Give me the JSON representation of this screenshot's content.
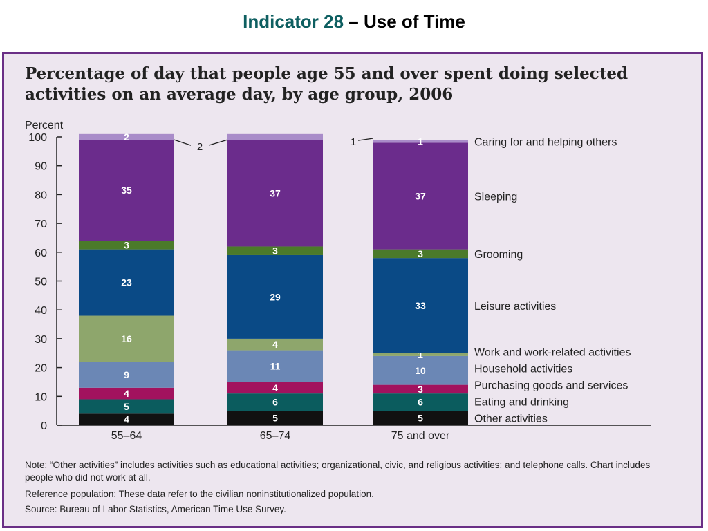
{
  "slide": {
    "title_accent": "Indicator 28",
    "title_rest": " – Use of Time"
  },
  "chart_heading": "Percentage of day that people age 55 and over spent doing selected activities on an average day, by age group, 2006",
  "notes": {
    "note": "Note: “Other activities” includes activities such as educational activities; organizational, civic, and religious activities; and telephone calls. Chart includes people who did not work at all.",
    "reference": "Reference population: These data refer to the civilian noninstitutionalized population.",
    "source": "Source: Bureau of Labor Statistics, American Time Use Survey."
  },
  "colors": {
    "background": "#ede6ef",
    "border": "#6a2f86",
    "title_accent": "#0e5f61"
  },
  "chart_data": {
    "type": "bar",
    "stacked": true,
    "ylabel": "Percent",
    "ylim": [
      0,
      100
    ],
    "yticks": [
      0,
      10,
      20,
      30,
      40,
      50,
      60,
      70,
      80,
      90,
      100
    ],
    "categories": [
      "55–64",
      "65–74",
      "75 and over"
    ],
    "series": [
      {
        "name": "Other activities",
        "color": "#111111",
        "label_color": "#ffffff",
        "values": [
          4,
          5,
          5
        ],
        "labels": [
          "4",
          "5",
          "5"
        ]
      },
      {
        "name": "Eating and drinking",
        "color": "#0b5c5e",
        "label_color": "#ffffff",
        "values": [
          5,
          6,
          6
        ],
        "labels": [
          "5",
          "6",
          "6"
        ]
      },
      {
        "name": "Purchasing goods and services",
        "color": "#a2125e",
        "label_color": "#ffffff",
        "values": [
          4,
          4,
          3
        ],
        "labels": [
          "4",
          "4",
          "3"
        ]
      },
      {
        "name": "Household activities",
        "color": "#6b87b5",
        "label_color": "#ffffff",
        "values": [
          9,
          11,
          10
        ],
        "labels": [
          "9",
          "11",
          "10"
        ]
      },
      {
        "name": "Work and work-related activities",
        "color": "#8ea66c",
        "label_color": "#ffffff",
        "values": [
          16,
          4,
          1
        ],
        "labels": [
          "16",
          "4",
          "1"
        ]
      },
      {
        "name": "Leisure activities",
        "color": "#0a4a86",
        "label_color": "#ffffff",
        "values": [
          23,
          29,
          33
        ],
        "labels": [
          "23",
          "29",
          "33"
        ]
      },
      {
        "name": "Grooming",
        "color": "#4b7a2a",
        "label_color": "#ffffff",
        "values": [
          3,
          3,
          3
        ],
        "labels": [
          "3",
          "3",
          "3"
        ]
      },
      {
        "name": "Sleeping",
        "color": "#6b2c8c",
        "label_color": "#ffffff",
        "values": [
          35,
          37,
          37
        ],
        "labels": [
          "35",
          "37",
          "37"
        ]
      },
      {
        "name": "Caring for and helping others",
        "color": "#a98cc9",
        "label_color": "#ffffff",
        "values": [
          2,
          2,
          1
        ],
        "labels": [
          "2",
          "",
          "1"
        ]
      }
    ],
    "callouts": [
      {
        "text": "2",
        "series": "Caring for and helping others"
      },
      {
        "text": "1",
        "series": "Caring for and helping others"
      }
    ]
  }
}
